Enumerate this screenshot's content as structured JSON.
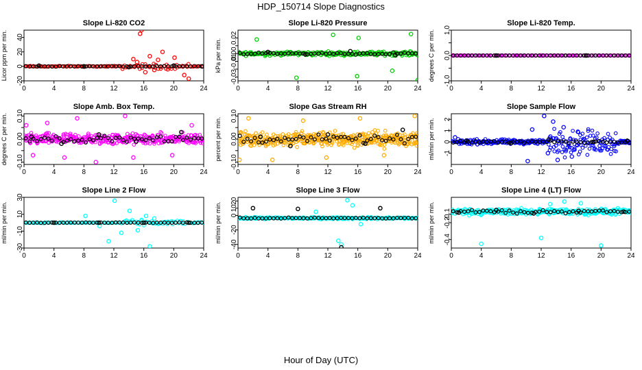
{
  "figure": {
    "title": "HDP_150714  Slope Diagnostics",
    "xlabel": "Hour of Day (UTC)"
  },
  "chart_data": [
    {
      "type": "scatter",
      "title": "Slope Li-820 CO2",
      "ylabel": "Licor ppm per min.",
      "xlim": [
        0,
        24
      ],
      "xticks": [
        0,
        4,
        8,
        12,
        16,
        20,
        24
      ],
      "ylim": [
        -20,
        50
      ],
      "yticks": [
        -20,
        0,
        20,
        40
      ],
      "yticklabels": [
        "-20",
        "0",
        "20",
        "40"
      ],
      "color": "#ff0000",
      "points": [
        [
          14.6,
          10
        ],
        [
          15.1,
          6
        ],
        [
          15.5,
          45
        ],
        [
          15.7,
          50
        ],
        [
          16.2,
          -8
        ],
        [
          16.8,
          14
        ],
        [
          17.4,
          -5
        ],
        [
          17.9,
          9
        ],
        [
          18.5,
          20
        ],
        [
          19.2,
          -4
        ],
        [
          20.1,
          12
        ],
        [
          21.4,
          -12
        ],
        [
          22.0,
          -17
        ]
      ],
      "black_points": [
        [
          2.0,
          1
        ],
        [
          8.0,
          0
        ],
        [
          14.0,
          -1
        ],
        [
          20.0,
          1
        ],
        [
          23.8,
          0
        ]
      ]
    },
    {
      "type": "scatter",
      "title": "Slope Li-820 Pressure",
      "ylabel": "kPa per min.",
      "xlim": [
        0,
        24
      ],
      "xticks": [
        0,
        4,
        8,
        12,
        16,
        20,
        24
      ],
      "ylim": [
        -0.035,
        0.03
      ],
      "yticks": [
        -0.03,
        -0.02,
        -0.01,
        0.0,
        0.01,
        0.02
      ],
      "yticklabels": [
        "-0.03",
        "",
        "-0.01",
        "0.00",
        "",
        "0.02"
      ],
      "color": "#00cc00",
      "points": [
        [
          2.5,
          0.018
        ],
        [
          7.8,
          -0.031
        ],
        [
          12.7,
          0.024
        ],
        [
          15.9,
          -0.029
        ],
        [
          16.1,
          0.02
        ],
        [
          20.6,
          -0.022
        ],
        [
          23.1,
          0.025
        ],
        [
          24.0,
          -0.034
        ]
      ],
      "black_points": [
        [
          4.0,
          0.002
        ],
        [
          9.0,
          -0.001
        ],
        [
          15.0,
          0.003
        ],
        [
          21.0,
          -0.002
        ]
      ]
    },
    {
      "type": "scatter",
      "title": "Slope Li-820 Temp.",
      "ylabel": "degrees C per min.",
      "xlim": [
        0,
        24
      ],
      "xticks": [
        0,
        4,
        8,
        12,
        16,
        20,
        24
      ],
      "ylim": [
        -1.0,
        1.0
      ],
      "yticks": [
        -1.0,
        -0.5,
        0.0,
        0.5,
        1.0
      ],
      "yticklabels": [
        "-1.0",
        "",
        "0.0",
        "",
        "1.0"
      ],
      "color": "#ff00ff",
      "points": [
        [
          0.2,
          0.0
        ],
        [
          12.0,
          0.0
        ],
        [
          23.9,
          0.0
        ]
      ],
      "black_points": [
        [
          6.0,
          0.0
        ],
        [
          18.0,
          0.0
        ]
      ]
    },
    {
      "type": "scatter",
      "title": "Slope Amb. Box Temp.",
      "ylabel": "degrees C per min.",
      "xlim": [
        0,
        24
      ],
      "xticks": [
        0,
        4,
        8,
        12,
        16,
        20,
        24
      ],
      "ylim": [
        -0.11,
        0.11
      ],
      "yticks": [
        -0.1,
        -0.05,
        0.0,
        0.05,
        0.1
      ],
      "yticklabels": [
        "-0.10",
        "",
        "0.00",
        "",
        "0.10"
      ],
      "color": "#ff00ff",
      "points": [
        [
          0.3,
          0.06
        ],
        [
          1.2,
          -0.07
        ],
        [
          3.1,
          0.07
        ],
        [
          5.4,
          -0.08
        ],
        [
          7.1,
          0.09
        ],
        [
          9.6,
          -0.1
        ],
        [
          13.5,
          0.1
        ],
        [
          14.6,
          -0.08
        ],
        [
          19.8,
          -0.07
        ],
        [
          22.4,
          0.06
        ]
      ],
      "black_points": [
        [
          1.0,
          0.01
        ],
        [
          5.0,
          -0.02
        ],
        [
          10.0,
          0.02
        ],
        [
          15.0,
          -0.01
        ],
        [
          21.0,
          0.03
        ]
      ]
    },
    {
      "type": "scatter",
      "title": "Slope Gas Stream RH",
      "ylabel": "percent per min.",
      "xlim": [
        0,
        24
      ],
      "xticks": [
        0,
        4,
        8,
        12,
        16,
        20,
        24
      ],
      "ylim": [
        -0.11,
        0.11
      ],
      "yticks": [
        -0.1,
        -0.05,
        0.0,
        0.05,
        0.1
      ],
      "yticklabels": [
        "-0.10",
        "",
        "0.00",
        "",
        "0.10"
      ],
      "color": "#ffaa00",
      "points": [
        [
          0.2,
          -0.09
        ],
        [
          1.4,
          0.09
        ],
        [
          4.6,
          -0.09
        ],
        [
          8.7,
          0.08
        ],
        [
          11.8,
          -0.08
        ],
        [
          16.3,
          0.09
        ],
        [
          19.5,
          -0.07
        ],
        [
          23.6,
          0.1
        ]
      ],
      "black_points": [
        [
          3.0,
          0.01
        ],
        [
          7.0,
          -0.03
        ],
        [
          12.0,
          0.02
        ],
        [
          17.0,
          -0.02
        ],
        [
          22.0,
          0.04
        ]
      ]
    },
    {
      "type": "scatter",
      "title": "Slope Sample Flow",
      "ylabel": "ml/min per min.",
      "xlim": [
        0,
        24
      ],
      "xticks": [
        0,
        4,
        8,
        12,
        16,
        20,
        24
      ],
      "ylim": [
        -2.0,
        2.5
      ],
      "yticks": [
        -1,
        0,
        1,
        2
      ],
      "yticklabels": [
        "-1",
        "0",
        "1",
        "2"
      ],
      "color": "#0000ff",
      "points": [
        [
          0.5,
          0.4
        ],
        [
          10.8,
          1.1
        ],
        [
          12.4,
          2.3
        ],
        [
          12.9,
          -1.0
        ],
        [
          13.6,
          1.8
        ],
        [
          14.2,
          -1.6
        ],
        [
          15.0,
          1.3
        ],
        [
          16.1,
          -1.3
        ],
        [
          16.9,
          0.9
        ],
        [
          10.2,
          -1.7
        ]
      ],
      "black_points": [
        [
          2.0,
          0.1
        ],
        [
          8.0,
          -0.1
        ],
        [
          13.0,
          0.2
        ],
        [
          19.0,
          0.0
        ],
        [
          23.5,
          0.1
        ]
      ]
    },
    {
      "type": "scatter",
      "title": "Slope Line 2 Flow",
      "ylabel": "ml/min per min.",
      "xlim": [
        0,
        24
      ],
      "xticks": [
        0,
        4,
        8,
        12,
        16,
        20,
        24
      ],
      "ylim": [
        -30,
        30
      ],
      "yticks": [
        -30,
        -10,
        10,
        30
      ],
      "yticklabels": [
        "-30",
        "-10",
        "10",
        "30"
      ],
      "color": "#00ffff",
      "points": [
        [
          8.2,
          8
        ],
        [
          10.1,
          -4
        ],
        [
          11.3,
          -22
        ],
        [
          12.1,
          26
        ],
        [
          13.0,
          -12
        ],
        [
          14.1,
          14
        ],
        [
          15.2,
          -9
        ],
        [
          16.3,
          8
        ],
        [
          16.8,
          -28
        ],
        [
          17.4,
          5
        ]
      ],
      "black_points": [
        [
          4.0,
          0
        ],
        [
          10.0,
          0
        ],
        [
          16.0,
          0
        ],
        [
          22.0,
          0
        ]
      ]
    },
    {
      "type": "scatter",
      "title": "Slope Line 3 Flow",
      "ylabel": "ml/min per min.",
      "xlim": [
        0,
        24
      ],
      "xticks": [
        0,
        4,
        8,
        12,
        16,
        20,
        24
      ],
      "ylim": [
        -45,
        25
      ],
      "yticks": [
        -40,
        -20,
        0,
        10,
        20
      ],
      "yticklabels": [
        "-40",
        "-20",
        "0",
        "10",
        "20"
      ],
      "color": "#00ffff",
      "points": [
        [
          10.4,
          5
        ],
        [
          13.4,
          -35
        ],
        [
          13.8,
          -40
        ],
        [
          14.6,
          21
        ],
        [
          15.3,
          14
        ],
        [
          16.4,
          -12
        ]
      ],
      "black_points": [
        [
          2.0,
          10
        ],
        [
          8.0,
          9
        ],
        [
          13.8,
          -44
        ],
        [
          19.0,
          10
        ]
      ]
    },
    {
      "type": "scatter",
      "title": "Slope Line 4 (LT) Flow",
      "ylabel": "ml/min per min.",
      "xlim": [
        0,
        24
      ],
      "xticks": [
        0,
        4,
        8,
        12,
        16,
        20,
        24
      ],
      "ylim": [
        -0.5,
        0.1
      ],
      "yticks": [
        -0.4,
        -0.2,
        -0.1
      ],
      "yticklabels": [
        "-0.4",
        "-0.2",
        "-0.1"
      ],
      "color": "#00ffff",
      "points": [
        [
          4.0,
          -0.45
        ],
        [
          12.0,
          -0.38
        ],
        [
          20.0,
          -0.47
        ],
        [
          15.1,
          0.05
        ],
        [
          17.3,
          0.03
        ],
        [
          13.2,
          0.02
        ]
      ],
      "black_points": [
        [
          1.0,
          -0.08
        ],
        [
          6.0,
          -0.05
        ],
        [
          11.0,
          -0.09
        ],
        [
          17.0,
          -0.06
        ],
        [
          23.0,
          -0.07
        ]
      ]
    }
  ]
}
